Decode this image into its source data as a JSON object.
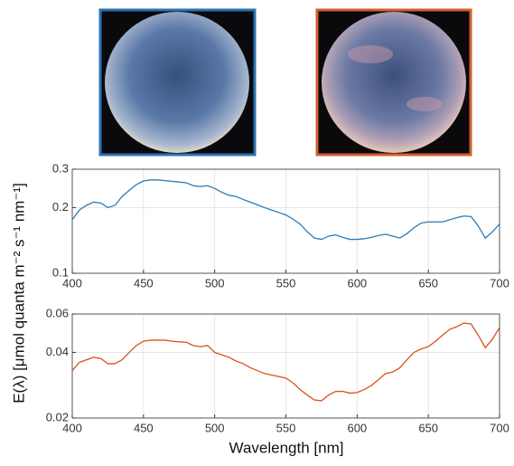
{
  "chart_data": [
    {
      "type": "line",
      "log_y": true,
      "grid": true,
      "x": [
        400,
        405,
        410,
        415,
        420,
        425,
        430,
        435,
        440,
        445,
        450,
        455,
        460,
        465,
        470,
        475,
        480,
        485,
        490,
        495,
        500,
        505,
        510,
        515,
        520,
        525,
        530,
        535,
        540,
        545,
        550,
        555,
        560,
        565,
        570,
        575,
        580,
        585,
        590,
        595,
        600,
        605,
        610,
        615,
        620,
        625,
        630,
        635,
        640,
        645,
        650,
        655,
        660,
        665,
        670,
        675,
        680,
        685,
        690,
        695,
        700
      ],
      "series": [
        {
          "color": "#2c7bb6",
          "values": [
            0.176,
            0.195,
            0.205,
            0.212,
            0.21,
            0.2,
            0.205,
            0.225,
            0.24,
            0.255,
            0.265,
            0.268,
            0.268,
            0.266,
            0.264,
            0.262,
            0.26,
            0.252,
            0.25,
            0.252,
            0.245,
            0.235,
            0.228,
            0.225,
            0.218,
            0.212,
            0.206,
            0.2,
            0.195,
            0.19,
            0.185,
            0.177,
            0.168,
            0.155,
            0.145,
            0.143,
            0.148,
            0.15,
            0.146,
            0.143,
            0.143,
            0.144,
            0.146,
            0.149,
            0.151,
            0.148,
            0.145,
            0.152,
            0.162,
            0.17,
            0.172,
            0.172,
            0.172,
            0.176,
            0.18,
            0.183,
            0.182,
            0.165,
            0.145,
            0.155,
            0.168
          ]
        }
      ],
      "xlim": [
        400,
        700
      ],
      "xticks": [
        400,
        450,
        500,
        550,
        600,
        650,
        700
      ],
      "ylim": [
        0.1,
        0.3
      ],
      "yticks": [
        0.1,
        0.2,
        0.3
      ],
      "ylabel": "E(λ) [μmol quanta m⁻² s⁻¹ nm⁻¹]"
    },
    {
      "type": "line",
      "log_y": true,
      "grid": true,
      "x": [
        400,
        405,
        410,
        415,
        420,
        425,
        430,
        435,
        440,
        445,
        450,
        455,
        460,
        465,
        470,
        475,
        480,
        485,
        490,
        495,
        500,
        505,
        510,
        515,
        520,
        525,
        530,
        535,
        540,
        545,
        550,
        555,
        560,
        565,
        570,
        575,
        580,
        585,
        590,
        595,
        600,
        605,
        610,
        615,
        620,
        625,
        630,
        635,
        640,
        645,
        650,
        655,
        660,
        665,
        670,
        675,
        680,
        685,
        690,
        695,
        700
      ],
      "series": [
        {
          "color": "#d95319",
          "values": [
            0.033,
            0.036,
            0.037,
            0.038,
            0.0375,
            0.0355,
            0.0355,
            0.037,
            0.04,
            0.043,
            0.045,
            0.0455,
            0.0455,
            0.0455,
            0.045,
            0.0447,
            0.0445,
            0.043,
            0.0425,
            0.043,
            0.04,
            0.039,
            0.038,
            0.0365,
            0.0355,
            0.034,
            0.033,
            0.032,
            0.0315,
            0.031,
            0.0305,
            0.029,
            0.027,
            0.0255,
            0.0242,
            0.024,
            0.0255,
            0.0265,
            0.0265,
            0.026,
            0.0262,
            0.027,
            0.0282,
            0.03,
            0.032,
            0.0325,
            0.034,
            0.037,
            0.04,
            0.0415,
            0.0425,
            0.045,
            0.048,
            0.051,
            0.0525,
            0.0545,
            0.054,
            0.048,
            0.042,
            0.046,
            0.052
          ]
        }
      ],
      "xlim": [
        400,
        700
      ],
      "xticks": [
        400,
        450,
        500,
        550,
        600,
        650,
        700
      ],
      "ylim": [
        0.02,
        0.06
      ],
      "yticks": [
        0.02,
        0.04,
        0.06
      ],
      "xlabel": "Wavelength [nm]"
    }
  ]
}
